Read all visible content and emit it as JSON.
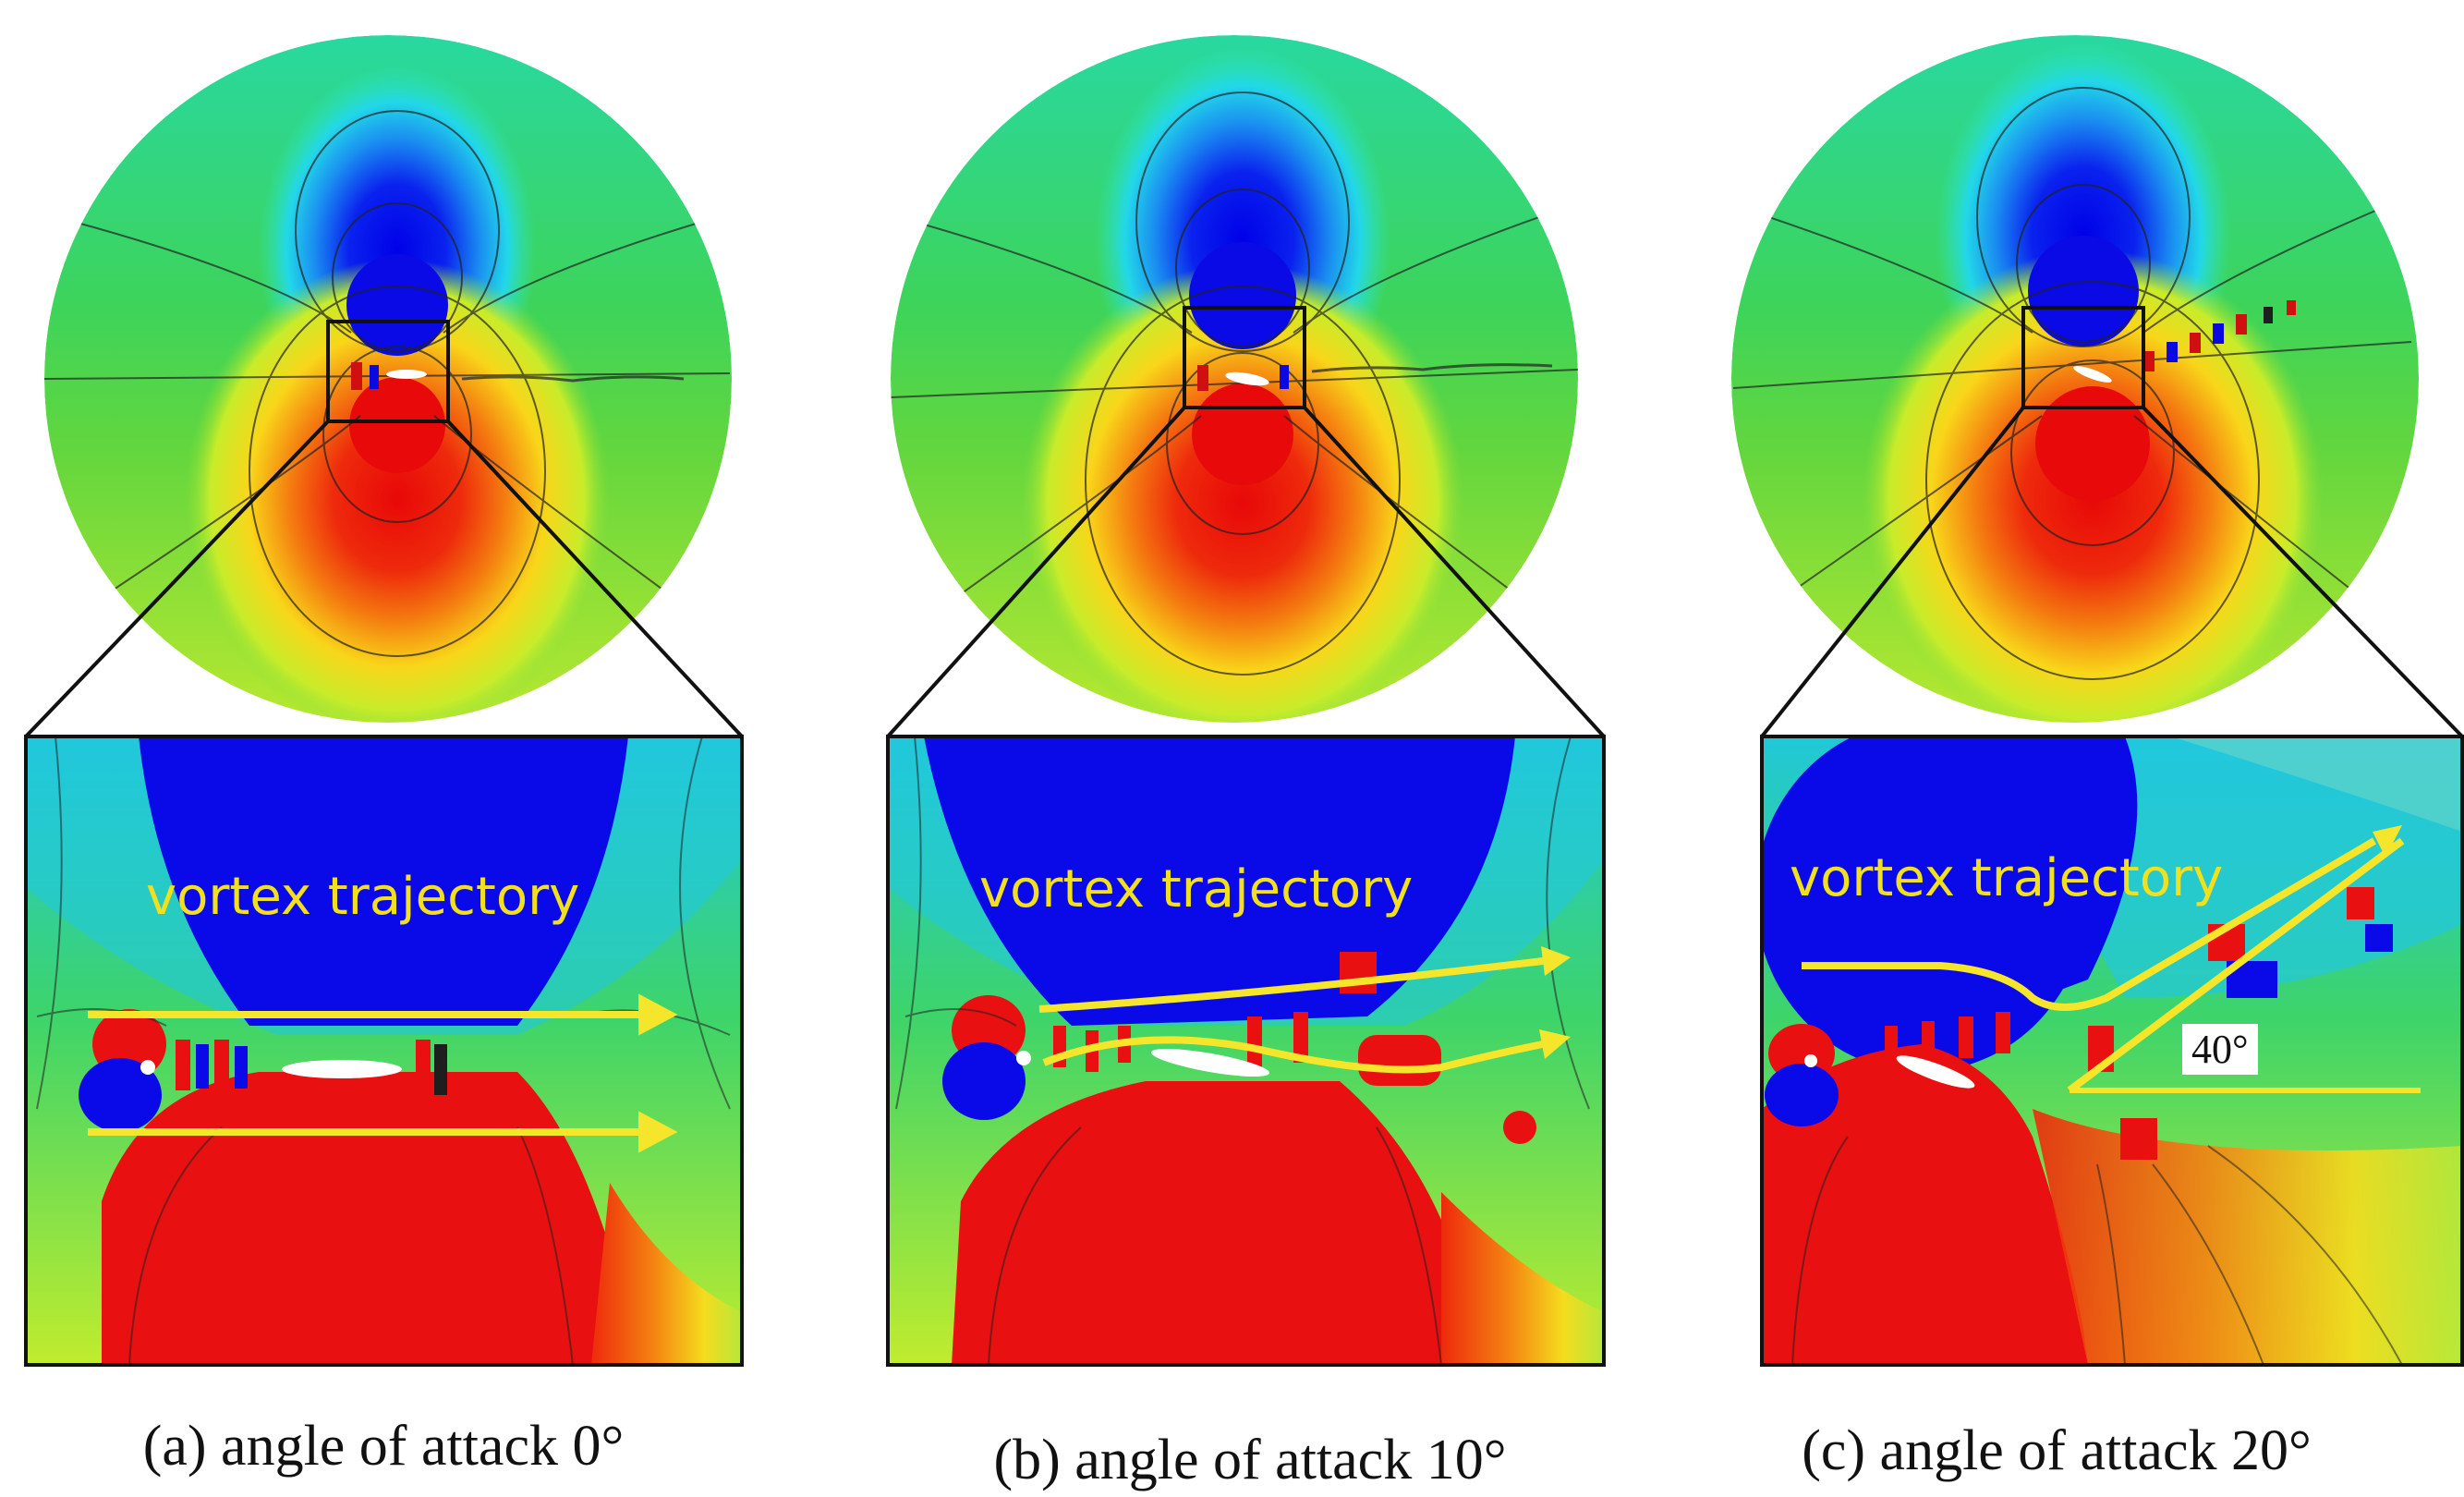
{
  "panels": [
    {
      "id": "a",
      "caption": "(a) angle of attack  0°",
      "trajectory_label": "vortex trajectory",
      "angle_of_attack_deg": 0
    },
    {
      "id": "b",
      "caption": "(b) angle of attack  10°",
      "trajectory_label": "vortex trajectory",
      "angle_of_attack_deg": 10
    },
    {
      "id": "c",
      "caption": "(c) angle of attack  20°",
      "trajectory_label": "vortex trajectory",
      "angle_label": "40°",
      "angle_of_attack_deg": 20
    }
  ],
  "colors": {
    "low_pressure": "#1010e6",
    "high_pressure": "#e81010",
    "ambient": "#3fd26a",
    "trajectory_arrow": "#f5e62c",
    "frame": "#111111"
  }
}
